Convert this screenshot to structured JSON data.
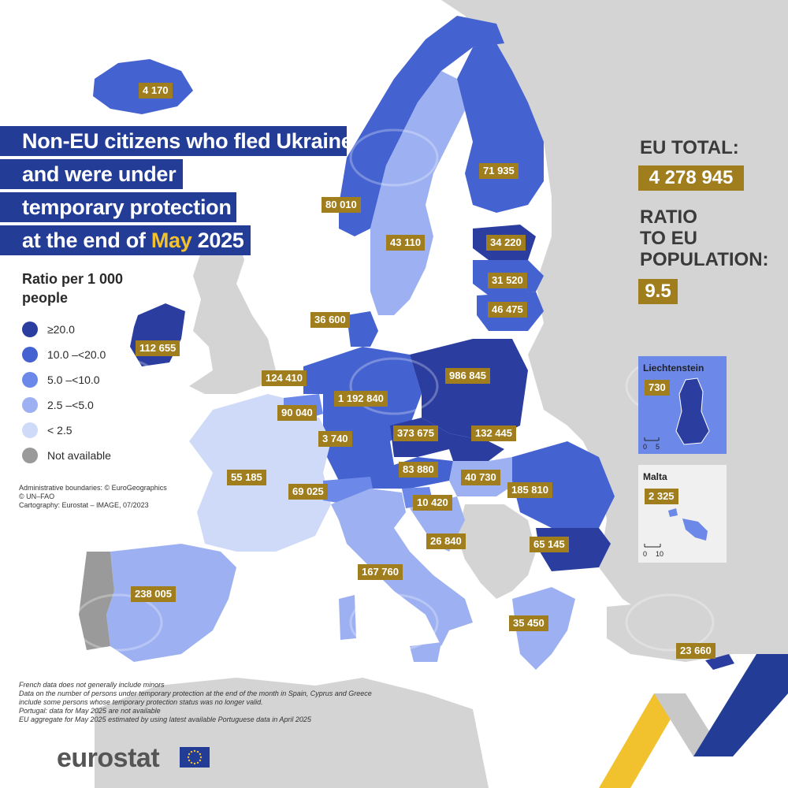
{
  "title": {
    "line1": "Non-EU citizens who fled Ukraine",
    "line2": "and were under",
    "line3": "temporary protection",
    "line4_prefix": "at the end of ",
    "line4_month": "May",
    "line4_suffix": " 2025"
  },
  "summary": {
    "eu_total_label": "EU TOTAL:",
    "eu_total_value": "4 278 945",
    "ratio_label_1": "RATIO",
    "ratio_label_2": "TO EU",
    "ratio_label_3": "POPULATION:",
    "ratio_value": "9.5"
  },
  "legend": {
    "title_1": "Ratio per 1 000",
    "title_2": "people",
    "items": [
      {
        "label": "≥20.0",
        "color": "#2b3ea0"
      },
      {
        "label": "10.0 –<20.0",
        "color": "#4563d0"
      },
      {
        "label": "5.0 –<10.0",
        "color": "#6c88e8"
      },
      {
        "label": "2.5 –<5.0",
        "color": "#9db1f2"
      },
      {
        "label": "< 2.5",
        "color": "#cfdaf8"
      },
      {
        "label": "Not available",
        "color": "#9a9a9a"
      }
    ]
  },
  "countries": {
    "iceland": "4 170",
    "norway": "80 010",
    "sweden": "43 110",
    "finland": "71 935",
    "estonia": "34 220",
    "latvia": "31 520",
    "lithuania": "46 475",
    "denmark": "36 600",
    "ireland": "112 655",
    "netherlands": "124 410",
    "belgium": "90 040",
    "luxembourg": "3 740",
    "germany": "1 192 840",
    "poland": "986 845",
    "czechia": "373 675",
    "slovakia": "132 445",
    "france": "55 185",
    "switzerland": "69 025",
    "austria": "83 880",
    "hungary": "40 730",
    "slovenia": "10 420",
    "croatia": "26 840",
    "romania": "185 810",
    "bulgaria": "65 145",
    "italy": "167 760",
    "spain": "238 005",
    "greece": "35 450",
    "cyprus": "23 660"
  },
  "insets": {
    "liechtenstein_name": "Liechtenstein",
    "liechtenstein_value": "730",
    "liechtenstein_scale_0": "0",
    "liechtenstein_scale_1": "5",
    "malta_name": "Malta",
    "malta_value": "2 325",
    "malta_scale_0": "0",
    "malta_scale_1": "10"
  },
  "credits": {
    "line1": "Administrative boundaries: © EuroGeographics",
    "line2": "© UN–FAO",
    "line3": "Cartography: Eurostat – IMAGE, 07/2023"
  },
  "notes": {
    "line1": "French data does not generally include minors",
    "line2": "Data on the number of persons under temporary protection at the end of the month in Spain, Cyprus and Greece",
    "line3": "include some persons whose temporary protection status was no longer valid.",
    "line4": "Portugal: data for May 2025 are not available",
    "line5": "EU aggregate for May 2025 estimated by using latest available Portuguese data in April 2025"
  },
  "brand": {
    "name": "eurostat"
  },
  "colors": {
    "sea": "#ffffff",
    "non_eu_land": "#d4d4d4",
    "title_bg": "#233c96",
    "label_bg": "#a07e1e",
    "highlight": "#f2c12e"
  }
}
